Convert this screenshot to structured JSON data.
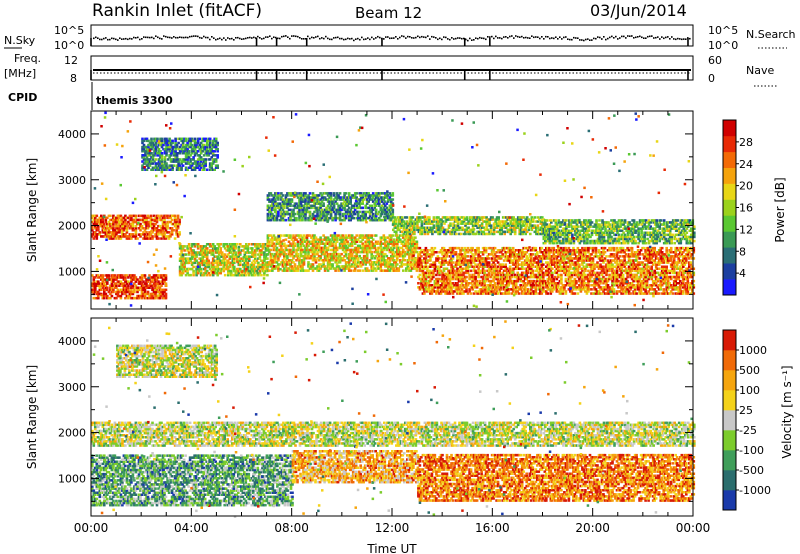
{
  "header": {
    "station": "Rankin Inlet (fitACF)",
    "beam": "Beam 12",
    "date": "03/Jun/2014"
  },
  "summary_panels": {
    "nsky_label": "N.Sky",
    "nsearch_label": "N.Search",
    "nsky_ticks": [
      "10^5",
      "10^0"
    ],
    "nsearch_ticks": [
      "10^5",
      "10^0"
    ],
    "freq_label": "Freq.",
    "freq_unit": "[MHz]",
    "freq_ticks": [
      "12",
      "8"
    ],
    "nave_label": "Nave",
    "nave_ticks": [
      "60",
      "0"
    ],
    "cpid_label": "CPID",
    "cpid_value": "themis 3300"
  },
  "chart_data": [
    {
      "type": "heatmap",
      "panel": "power",
      "ylabel": "Slant Range [km]",
      "ylim": [
        180,
        4500
      ],
      "yticks": [
        1000,
        2000,
        3000,
        4000
      ],
      "xlim": [
        0,
        24
      ],
      "colorbar": {
        "label": "Power [dB]",
        "ticks": [
          4,
          8,
          12,
          16,
          20,
          24,
          28
        ],
        "range": [
          0,
          32
        ],
        "colors": [
          "#1a1aff",
          "#1c3fa0",
          "#2a6e75",
          "#3a9a55",
          "#5ac832",
          "#9bd21c",
          "#e8d616",
          "#f5a30c",
          "#f36a06",
          "#e82a05",
          "#d00000"
        ]
      },
      "bands": [
        {
          "start": 0.0,
          "end": 3.5,
          "rmin": 1700,
          "rmax": 2200,
          "level": 0.8
        },
        {
          "start": 0.0,
          "end": 3.0,
          "rmin": 400,
          "rmax": 900,
          "level": 0.85
        },
        {
          "start": 3.5,
          "end": 7.0,
          "rmin": 900,
          "rmax": 1600,
          "level": 0.55
        },
        {
          "start": 7.0,
          "end": 13.0,
          "rmin": 1000,
          "rmax": 1800,
          "level": 0.6
        },
        {
          "start": 7.0,
          "end": 12.0,
          "rmin": 2100,
          "rmax": 2700,
          "level": 0.3
        },
        {
          "start": 12.0,
          "end": 18.0,
          "rmin": 1800,
          "rmax": 2200,
          "level": 0.45
        },
        {
          "start": 13.0,
          "end": 24.0,
          "rmin": 500,
          "rmax": 1500,
          "level": 0.75
        },
        {
          "start": 18.0,
          "end": 24.0,
          "rmin": 1600,
          "rmax": 2100,
          "level": 0.4
        },
        {
          "start": 2.0,
          "end": 5.0,
          "rmin": 3200,
          "rmax": 3900,
          "level": 0.25
        }
      ]
    },
    {
      "type": "heatmap",
      "panel": "velocity",
      "ylabel": "Slant Range [km]",
      "ylim": [
        180,
        4500
      ],
      "yticks": [
        1000,
        2000,
        3000,
        4000
      ],
      "xlim": [
        0,
        24
      ],
      "xticks": [
        "00:00",
        "04:00",
        "08:00",
        "12:00",
        "16:00",
        "20:00",
        "00:00"
      ],
      "xlabel": "Time UT",
      "colorbar": {
        "label": "Velocity [m s⁻¹]",
        "ticks": [
          "1000",
          "500",
          "100",
          "25",
          "-25",
          "-100",
          "-500",
          "-1000"
        ],
        "colors": [
          "#1a3aaa",
          "#2b6e6e",
          "#3f9e5a",
          "#7ccc2c",
          "#c8c8c8",
          "#f4d21a",
          "#f5a50e",
          "#f06a08",
          "#d81a05"
        ]
      },
      "bands": [
        {
          "start": 0.0,
          "end": 24.0,
          "rmin": 1700,
          "rmax": 2200,
          "level": 0.5
        },
        {
          "start": 0.0,
          "end": 8.0,
          "rmin": 400,
          "rmax": 1500,
          "level": 0.3
        },
        {
          "start": 8.0,
          "end": 13.0,
          "rmin": 900,
          "rmax": 1600,
          "level": 0.7
        },
        {
          "start": 13.0,
          "end": 24.0,
          "rmin": 500,
          "rmax": 1500,
          "level": 0.8
        },
        {
          "start": 1.0,
          "end": 5.0,
          "rmin": 3200,
          "rmax": 3900,
          "level": 0.5
        }
      ]
    }
  ]
}
